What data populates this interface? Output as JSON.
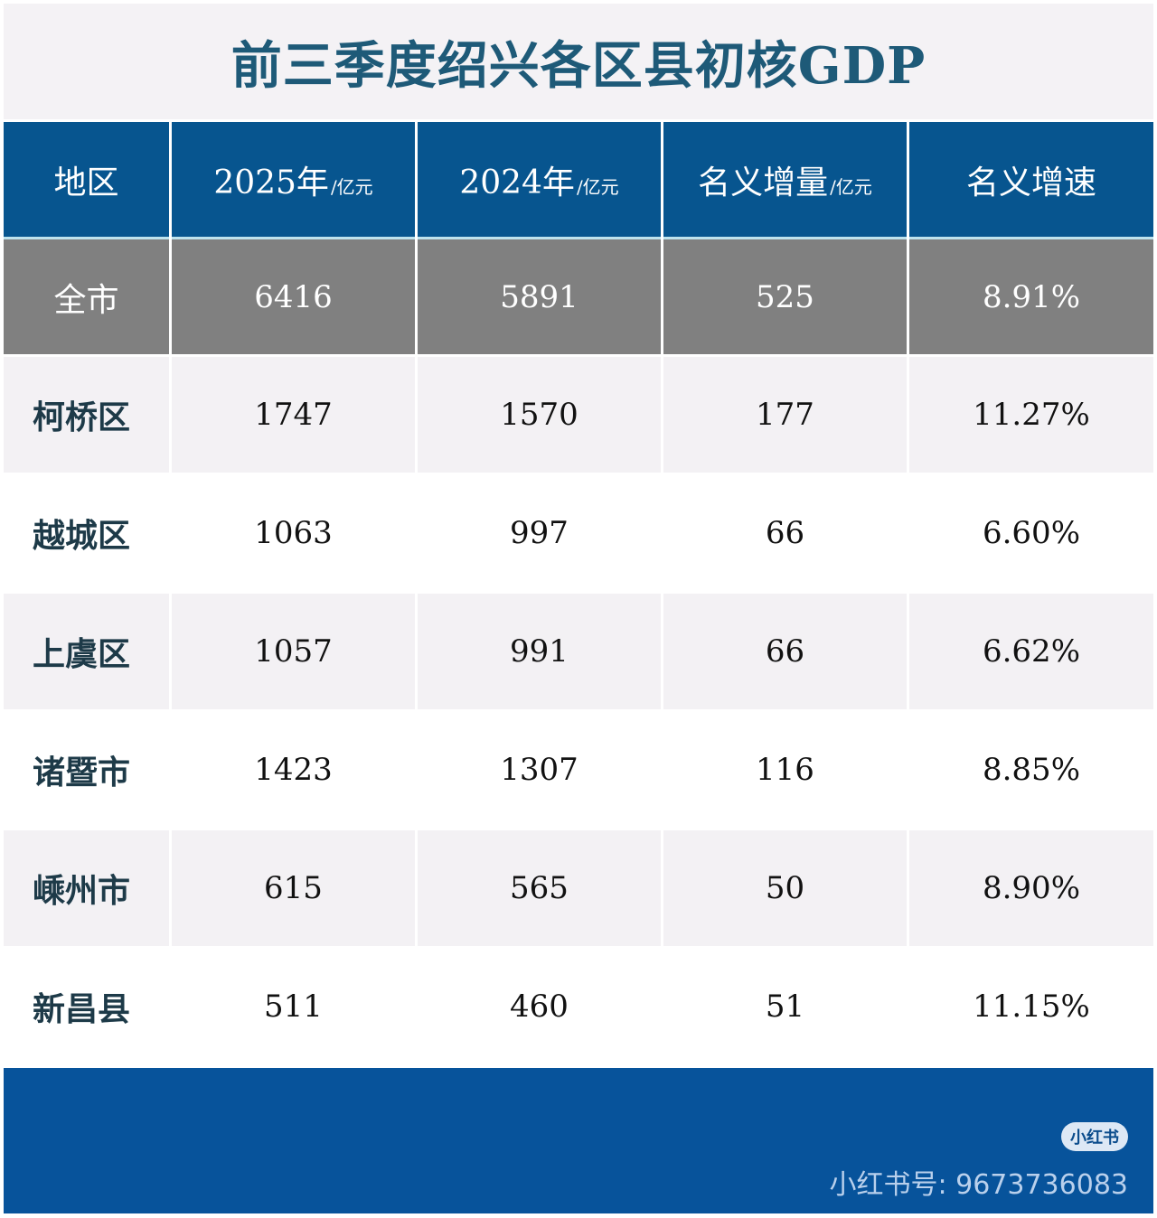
{
  "title": "前三季度绍兴各区县初核GDP",
  "chart_data": {
    "type": "table",
    "title": "前三季度绍兴各区县初核GDP",
    "columns": [
      {
        "label": "地区",
        "unit": ""
      },
      {
        "label": "2025年",
        "unit": "/亿元"
      },
      {
        "label": "2024年",
        "unit": "/亿元"
      },
      {
        "label": "名义增量",
        "unit": "/亿元"
      },
      {
        "label": "名义增速",
        "unit": ""
      }
    ],
    "rows": [
      [
        "全市",
        "6416",
        "5891",
        "525",
        "8.91%"
      ],
      [
        "柯桥区",
        "1747",
        "1570",
        "177",
        "11.27%"
      ],
      [
        "越城区",
        "1063",
        "997",
        "66",
        "6.60%"
      ],
      [
        "上虞区",
        "1057",
        "991",
        "66",
        "6.62%"
      ],
      [
        "诸暨市",
        "1423",
        "1307",
        "116",
        "8.85%"
      ],
      [
        "嵊州市",
        "615",
        "565",
        "50",
        "8.90%"
      ],
      [
        "新昌县",
        "511",
        "460",
        "51",
        "11.15%"
      ]
    ]
  },
  "footer": {
    "badge": "小红书",
    "account": "小红书号: 9673736083"
  },
  "colors": {
    "header": "#07558f",
    "total_row": "#808080",
    "title": "#1e5a78",
    "footer": "#07539b"
  }
}
